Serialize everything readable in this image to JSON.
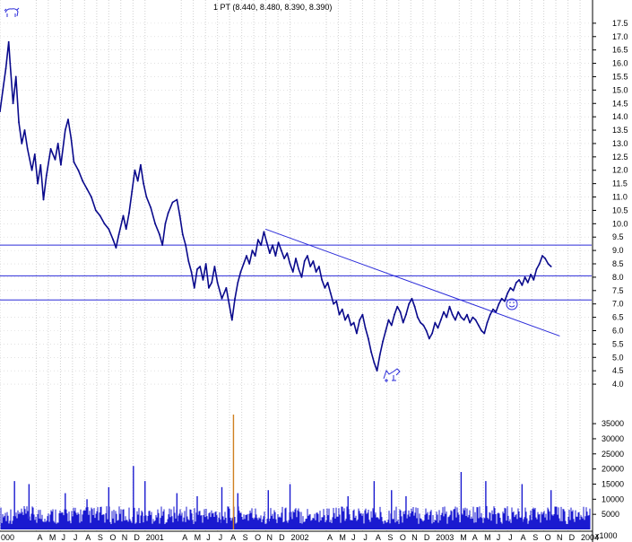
{
  "header": {
    "quote": "1 PT (8.440, 8.480, 8.390, 8.390)"
  },
  "colors": {
    "price": "#0a0a8c",
    "trend_line": "#2b2bd9",
    "grid": "#d0d0d0",
    "volume": "#1a1ad0",
    "volume_spike": "#d08020",
    "axis": "#000000"
  },
  "icons": {
    "top_left": "bull-icon",
    "bottom": "bear-icon",
    "annotation": "smiley-icon"
  },
  "chart_data": {
    "type": "line",
    "title": "",
    "price_axis": {
      "ylim": [
        3.6,
        18.1
      ],
      "ticks": [
        "4.0",
        "4.5",
        "5.0",
        "5.5",
        "6.0",
        "6.5",
        "7.0",
        "7.5",
        "8.0",
        "8.5",
        "9.0",
        "9.5",
        "10.0",
        "10.5",
        "11.0",
        "11.5",
        "12.0",
        "12.5",
        "13.0",
        "13.5",
        "14.0",
        "14.5",
        "15.0",
        "15.5",
        "16.0",
        "16.5",
        "17.0",
        "17.5"
      ]
    },
    "volume_axis": {
      "ylim": [
        0,
        38000
      ],
      "ticks": [
        "5000",
        "10000",
        "15000",
        "20000",
        "25000",
        "30000",
        "35000"
      ],
      "unit_label": "x1000"
    },
    "x_axis": {
      "xlim": [
        2000.0,
        2004.08
      ],
      "month_labels": [
        {
          "t": 2000.0,
          "label": "000"
        },
        {
          "t": 2000.25,
          "label": "A"
        },
        {
          "t": 2000.333,
          "label": "M"
        },
        {
          "t": 2000.417,
          "label": "J"
        },
        {
          "t": 2000.5,
          "label": "J"
        },
        {
          "t": 2000.583,
          "label": "A"
        },
        {
          "t": 2000.667,
          "label": "S"
        },
        {
          "t": 2000.75,
          "label": "O"
        },
        {
          "t": 2000.833,
          "label": "N"
        },
        {
          "t": 2000.917,
          "label": "D"
        },
        {
          "t": 2001.0,
          "label": "2001"
        },
        {
          "t": 2001.25,
          "label": "A"
        },
        {
          "t": 2001.333,
          "label": "M"
        },
        {
          "t": 2001.417,
          "label": "J"
        },
        {
          "t": 2001.5,
          "label": "J"
        },
        {
          "t": 2001.583,
          "label": "A"
        },
        {
          "t": 2001.667,
          "label": "S"
        },
        {
          "t": 2001.75,
          "label": "O"
        },
        {
          "t": 2001.833,
          "label": "N"
        },
        {
          "t": 2001.917,
          "label": "D"
        },
        {
          "t": 2002.0,
          "label": "2002"
        },
        {
          "t": 2002.25,
          "label": "A"
        },
        {
          "t": 2002.333,
          "label": "M"
        },
        {
          "t": 2002.417,
          "label": "J"
        },
        {
          "t": 2002.5,
          "label": "J"
        },
        {
          "t": 2002.583,
          "label": "A"
        },
        {
          "t": 2002.667,
          "label": "S"
        },
        {
          "t": 2002.75,
          "label": "O"
        },
        {
          "t": 2002.833,
          "label": "N"
        },
        {
          "t": 2002.917,
          "label": "D"
        },
        {
          "t": 2003.0,
          "label": "2003"
        },
        {
          "t": 2003.167,
          "label": "M"
        },
        {
          "t": 2003.25,
          "label": "A"
        },
        {
          "t": 2003.333,
          "label": "M"
        },
        {
          "t": 2003.417,
          "label": "J"
        },
        {
          "t": 2003.5,
          "label": "J"
        },
        {
          "t": 2003.583,
          "label": "A"
        },
        {
          "t": 2003.667,
          "label": "S"
        },
        {
          "t": 2003.75,
          "label": "O"
        },
        {
          "t": 2003.833,
          "label": "N"
        },
        {
          "t": 2003.917,
          "label": "D"
        },
        {
          "t": 2004.0,
          "label": "2004"
        }
      ]
    },
    "horizontal_lines": [
      9.2,
      8.05,
      7.15
    ],
    "trend_line": {
      "from": {
        "t": 2001.83,
        "y": 9.8
      },
      "to": {
        "t": 2003.86,
        "y": 5.8
      }
    },
    "price_series": [
      {
        "t": 2000.0,
        "y": 14.2
      },
      {
        "t": 2000.02,
        "y": 15.0
      },
      {
        "t": 2000.04,
        "y": 15.8
      },
      {
        "t": 2000.06,
        "y": 16.8
      },
      {
        "t": 2000.07,
        "y": 16.0
      },
      {
        "t": 2000.09,
        "y": 14.5
      },
      {
        "t": 2000.11,
        "y": 15.5
      },
      {
        "t": 2000.13,
        "y": 13.8
      },
      {
        "t": 2000.15,
        "y": 13.0
      },
      {
        "t": 2000.17,
        "y": 13.5
      },
      {
        "t": 2000.19,
        "y": 12.8
      },
      {
        "t": 2000.22,
        "y": 12.0
      },
      {
        "t": 2000.24,
        "y": 12.6
      },
      {
        "t": 2000.26,
        "y": 11.5
      },
      {
        "t": 2000.28,
        "y": 12.2
      },
      {
        "t": 2000.3,
        "y": 10.9
      },
      {
        "t": 2000.32,
        "y": 11.8
      },
      {
        "t": 2000.35,
        "y": 12.8
      },
      {
        "t": 2000.38,
        "y": 12.4
      },
      {
        "t": 2000.4,
        "y": 13.0
      },
      {
        "t": 2000.42,
        "y": 12.2
      },
      {
        "t": 2000.45,
        "y": 13.5
      },
      {
        "t": 2000.47,
        "y": 13.9
      },
      {
        "t": 2000.49,
        "y": 13.2
      },
      {
        "t": 2000.51,
        "y": 12.3
      },
      {
        "t": 2000.54,
        "y": 12.0
      },
      {
        "t": 2000.57,
        "y": 11.6
      },
      {
        "t": 2000.6,
        "y": 11.3
      },
      {
        "t": 2000.63,
        "y": 11.0
      },
      {
        "t": 2000.66,
        "y": 10.5
      },
      {
        "t": 2000.69,
        "y": 10.3
      },
      {
        "t": 2000.72,
        "y": 10.0
      },
      {
        "t": 2000.75,
        "y": 9.8
      },
      {
        "t": 2000.78,
        "y": 9.4
      },
      {
        "t": 2000.8,
        "y": 9.1
      },
      {
        "t": 2000.82,
        "y": 9.6
      },
      {
        "t": 2000.85,
        "y": 10.3
      },
      {
        "t": 2000.87,
        "y": 9.8
      },
      {
        "t": 2000.89,
        "y": 10.4
      },
      {
        "t": 2000.91,
        "y": 11.2
      },
      {
        "t": 2000.93,
        "y": 12.0
      },
      {
        "t": 2000.95,
        "y": 11.6
      },
      {
        "t": 2000.97,
        "y": 12.2
      },
      {
        "t": 2000.99,
        "y": 11.5
      },
      {
        "t": 2001.01,
        "y": 11.0
      },
      {
        "t": 2001.04,
        "y": 10.6
      },
      {
        "t": 2001.07,
        "y": 10.0
      },
      {
        "t": 2001.1,
        "y": 9.6
      },
      {
        "t": 2001.12,
        "y": 9.2
      },
      {
        "t": 2001.14,
        "y": 10.0
      },
      {
        "t": 2001.16,
        "y": 10.4
      },
      {
        "t": 2001.19,
        "y": 10.8
      },
      {
        "t": 2001.22,
        "y": 10.9
      },
      {
        "t": 2001.24,
        "y": 10.3
      },
      {
        "t": 2001.26,
        "y": 9.6
      },
      {
        "t": 2001.28,
        "y": 9.2
      },
      {
        "t": 2001.3,
        "y": 8.6
      },
      {
        "t": 2001.32,
        "y": 8.2
      },
      {
        "t": 2001.34,
        "y": 7.6
      },
      {
        "t": 2001.36,
        "y": 8.3
      },
      {
        "t": 2001.38,
        "y": 8.4
      },
      {
        "t": 2001.4,
        "y": 7.9
      },
      {
        "t": 2001.42,
        "y": 8.5
      },
      {
        "t": 2001.44,
        "y": 7.6
      },
      {
        "t": 2001.46,
        "y": 7.8
      },
      {
        "t": 2001.48,
        "y": 8.4
      },
      {
        "t": 2001.5,
        "y": 7.8
      },
      {
        "t": 2001.53,
        "y": 7.2
      },
      {
        "t": 2001.56,
        "y": 7.6
      },
      {
        "t": 2001.58,
        "y": 7.0
      },
      {
        "t": 2001.6,
        "y": 6.4
      },
      {
        "t": 2001.62,
        "y": 7.2
      },
      {
        "t": 2001.64,
        "y": 7.8
      },
      {
        "t": 2001.66,
        "y": 8.2
      },
      {
        "t": 2001.68,
        "y": 8.5
      },
      {
        "t": 2001.7,
        "y": 8.8
      },
      {
        "t": 2001.72,
        "y": 8.5
      },
      {
        "t": 2001.74,
        "y": 9.0
      },
      {
        "t": 2001.76,
        "y": 8.8
      },
      {
        "t": 2001.78,
        "y": 9.4
      },
      {
        "t": 2001.8,
        "y": 9.2
      },
      {
        "t": 2001.82,
        "y": 9.7
      },
      {
        "t": 2001.84,
        "y": 9.3
      },
      {
        "t": 2001.86,
        "y": 8.9
      },
      {
        "t": 2001.88,
        "y": 9.2
      },
      {
        "t": 2001.9,
        "y": 8.8
      },
      {
        "t": 2001.92,
        "y": 9.3
      },
      {
        "t": 2001.94,
        "y": 9.0
      },
      {
        "t": 2001.96,
        "y": 8.7
      },
      {
        "t": 2001.98,
        "y": 8.9
      },
      {
        "t": 2002.0,
        "y": 8.5
      },
      {
        "t": 2002.02,
        "y": 8.2
      },
      {
        "t": 2002.04,
        "y": 8.7
      },
      {
        "t": 2002.06,
        "y": 8.3
      },
      {
        "t": 2002.08,
        "y": 8.0
      },
      {
        "t": 2002.1,
        "y": 8.6
      },
      {
        "t": 2002.12,
        "y": 8.8
      },
      {
        "t": 2002.14,
        "y": 8.4
      },
      {
        "t": 2002.16,
        "y": 8.6
      },
      {
        "t": 2002.18,
        "y": 8.2
      },
      {
        "t": 2002.2,
        "y": 8.4
      },
      {
        "t": 2002.22,
        "y": 7.9
      },
      {
        "t": 2002.24,
        "y": 7.6
      },
      {
        "t": 2002.26,
        "y": 7.8
      },
      {
        "t": 2002.28,
        "y": 7.4
      },
      {
        "t": 2002.3,
        "y": 7.0
      },
      {
        "t": 2002.32,
        "y": 7.1
      },
      {
        "t": 2002.34,
        "y": 6.6
      },
      {
        "t": 2002.36,
        "y": 6.8
      },
      {
        "t": 2002.38,
        "y": 6.4
      },
      {
        "t": 2002.4,
        "y": 6.6
      },
      {
        "t": 2002.42,
        "y": 6.2
      },
      {
        "t": 2002.44,
        "y": 6.3
      },
      {
        "t": 2002.46,
        "y": 5.9
      },
      {
        "t": 2002.48,
        "y": 6.4
      },
      {
        "t": 2002.5,
        "y": 6.6
      },
      {
        "t": 2002.52,
        "y": 6.1
      },
      {
        "t": 2002.54,
        "y": 5.7
      },
      {
        "t": 2002.56,
        "y": 5.2
      },
      {
        "t": 2002.58,
        "y": 4.8
      },
      {
        "t": 2002.6,
        "y": 4.5
      },
      {
        "t": 2002.62,
        "y": 5.1
      },
      {
        "t": 2002.64,
        "y": 5.6
      },
      {
        "t": 2002.66,
        "y": 6.0
      },
      {
        "t": 2002.68,
        "y": 6.4
      },
      {
        "t": 2002.7,
        "y": 6.2
      },
      {
        "t": 2002.72,
        "y": 6.6
      },
      {
        "t": 2002.74,
        "y": 6.9
      },
      {
        "t": 2002.76,
        "y": 6.7
      },
      {
        "t": 2002.78,
        "y": 6.3
      },
      {
        "t": 2002.8,
        "y": 6.6
      },
      {
        "t": 2002.82,
        "y": 7.0
      },
      {
        "t": 2002.84,
        "y": 7.2
      },
      {
        "t": 2002.86,
        "y": 6.9
      },
      {
        "t": 2002.88,
        "y": 6.5
      },
      {
        "t": 2002.9,
        "y": 6.3
      },
      {
        "t": 2002.92,
        "y": 6.2
      },
      {
        "t": 2002.94,
        "y": 6.0
      },
      {
        "t": 2002.96,
        "y": 5.7
      },
      {
        "t": 2002.98,
        "y": 5.9
      },
      {
        "t": 2003.0,
        "y": 6.3
      },
      {
        "t": 2003.02,
        "y": 6.1
      },
      {
        "t": 2003.04,
        "y": 6.4
      },
      {
        "t": 2003.06,
        "y": 6.7
      },
      {
        "t": 2003.08,
        "y": 6.5
      },
      {
        "t": 2003.1,
        "y": 6.9
      },
      {
        "t": 2003.12,
        "y": 6.6
      },
      {
        "t": 2003.14,
        "y": 6.4
      },
      {
        "t": 2003.16,
        "y": 6.7
      },
      {
        "t": 2003.18,
        "y": 6.5
      },
      {
        "t": 2003.2,
        "y": 6.4
      },
      {
        "t": 2003.22,
        "y": 6.6
      },
      {
        "t": 2003.24,
        "y": 6.3
      },
      {
        "t": 2003.26,
        "y": 6.5
      },
      {
        "t": 2003.28,
        "y": 6.4
      },
      {
        "t": 2003.3,
        "y": 6.2
      },
      {
        "t": 2003.32,
        "y": 6.0
      },
      {
        "t": 2003.34,
        "y": 5.9
      },
      {
        "t": 2003.36,
        "y": 6.3
      },
      {
        "t": 2003.38,
        "y": 6.6
      },
      {
        "t": 2003.4,
        "y": 6.8
      },
      {
        "t": 2003.42,
        "y": 6.7
      },
      {
        "t": 2003.44,
        "y": 7.0
      },
      {
        "t": 2003.46,
        "y": 7.2
      },
      {
        "t": 2003.48,
        "y": 7.1
      },
      {
        "t": 2003.5,
        "y": 7.4
      },
      {
        "t": 2003.52,
        "y": 7.6
      },
      {
        "t": 2003.54,
        "y": 7.5
      },
      {
        "t": 2003.56,
        "y": 7.8
      },
      {
        "t": 2003.58,
        "y": 7.9
      },
      {
        "t": 2003.6,
        "y": 7.7
      },
      {
        "t": 2003.62,
        "y": 8.0
      },
      {
        "t": 2003.64,
        "y": 7.8
      },
      {
        "t": 2003.66,
        "y": 8.1
      },
      {
        "t": 2003.68,
        "y": 7.9
      },
      {
        "t": 2003.7,
        "y": 8.3
      },
      {
        "t": 2003.72,
        "y": 8.5
      },
      {
        "t": 2003.74,
        "y": 8.8
      },
      {
        "t": 2003.76,
        "y": 8.7
      },
      {
        "t": 2003.78,
        "y": 8.5
      },
      {
        "t": 2003.8,
        "y": 8.4
      }
    ],
    "volume_series": [
      {
        "t": 2000.1,
        "v": 16000
      },
      {
        "t": 2000.2,
        "v": 15000
      },
      {
        "t": 2000.45,
        "v": 12000
      },
      {
        "t": 2000.6,
        "v": 10000
      },
      {
        "t": 2000.75,
        "v": 14000
      },
      {
        "t": 2000.92,
        "v": 21000
      },
      {
        "t": 2001.0,
        "v": 16000
      },
      {
        "t": 2001.22,
        "v": 12000
      },
      {
        "t": 2001.36,
        "v": 11000
      },
      {
        "t": 2001.53,
        "v": 14000
      },
      {
        "t": 2001.61,
        "v": 38000
      },
      {
        "t": 2001.64,
        "v": 12000
      },
      {
        "t": 2001.85,
        "v": 13000
      },
      {
        "t": 2002.0,
        "v": 15000
      },
      {
        "t": 2002.4,
        "v": 11000
      },
      {
        "t": 2002.58,
        "v": 16000
      },
      {
        "t": 2002.7,
        "v": 13000
      },
      {
        "t": 2002.8,
        "v": 11000
      },
      {
        "t": 2003.18,
        "v": 19000
      },
      {
        "t": 2003.35,
        "v": 16000
      },
      {
        "t": 2003.6,
        "v": 15000
      },
      {
        "t": 2003.8,
        "v": 13000
      }
    ]
  }
}
